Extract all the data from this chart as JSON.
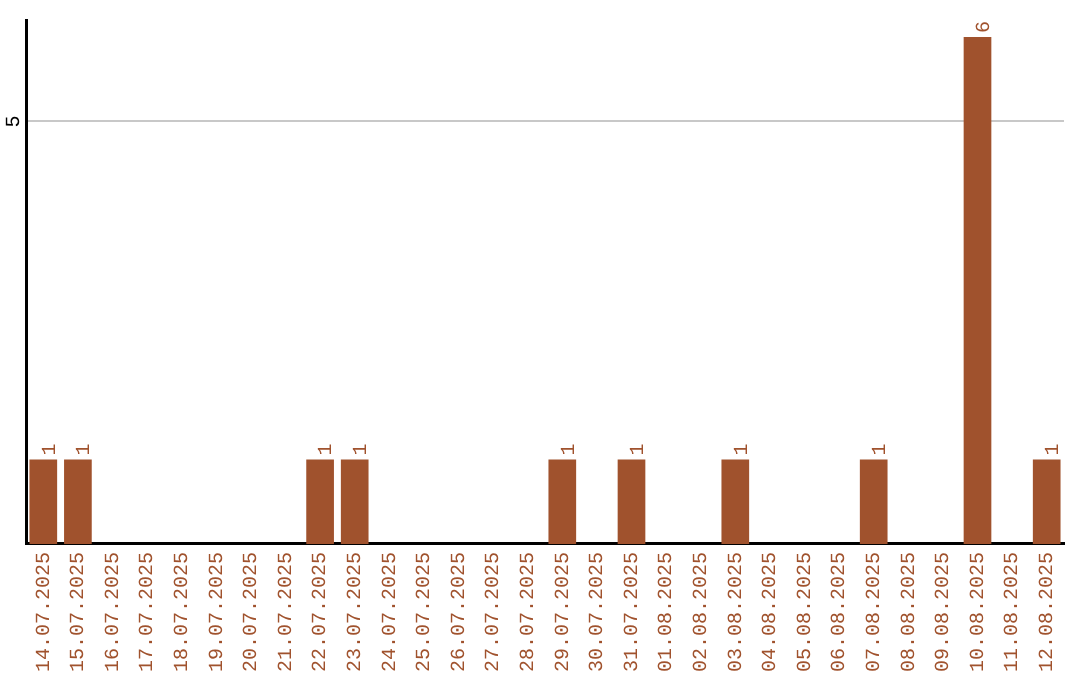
{
  "chart_data": {
    "type": "bar",
    "categories": [
      "14.07.2025",
      "15.07.2025",
      "16.07.2025",
      "17.07.2025",
      "18.07.2025",
      "19.07.2025",
      "20.07.2025",
      "21.07.2025",
      "22.07.2025",
      "23.07.2025",
      "24.07.2025",
      "25.07.2025",
      "26.07.2025",
      "27.07.2025",
      "28.07.2025",
      "29.07.2025",
      "30.07.2025",
      "31.07.2025",
      "01.08.2025",
      "02.08.2025",
      "03.08.2025",
      "04.08.2025",
      "05.08.2025",
      "06.08.2025",
      "07.08.2025",
      "08.08.2025",
      "09.08.2025",
      "10.08.2025",
      "11.08.2025",
      "12.08.2025"
    ],
    "values": [
      1,
      1,
      0,
      0,
      0,
      0,
      0,
      0,
      1,
      1,
      0,
      0,
      0,
      0,
      0,
      1,
      0,
      1,
      0,
      0,
      1,
      0,
      0,
      0,
      1,
      0,
      0,
      6,
      0,
      1
    ],
    "value_labels": [
      "1",
      "1",
      null,
      null,
      null,
      null,
      null,
      null,
      "1",
      "1",
      null,
      null,
      null,
      null,
      null,
      "1",
      null,
      "1",
      null,
      null,
      "1",
      null,
      null,
      null,
      "1",
      null,
      null,
      "6",
      null,
      "1"
    ],
    "color": "#a0522d",
    "ylim": [
      0,
      6.2
    ],
    "yticks": [
      5
    ],
    "grid": "y",
    "legend": false
  }
}
